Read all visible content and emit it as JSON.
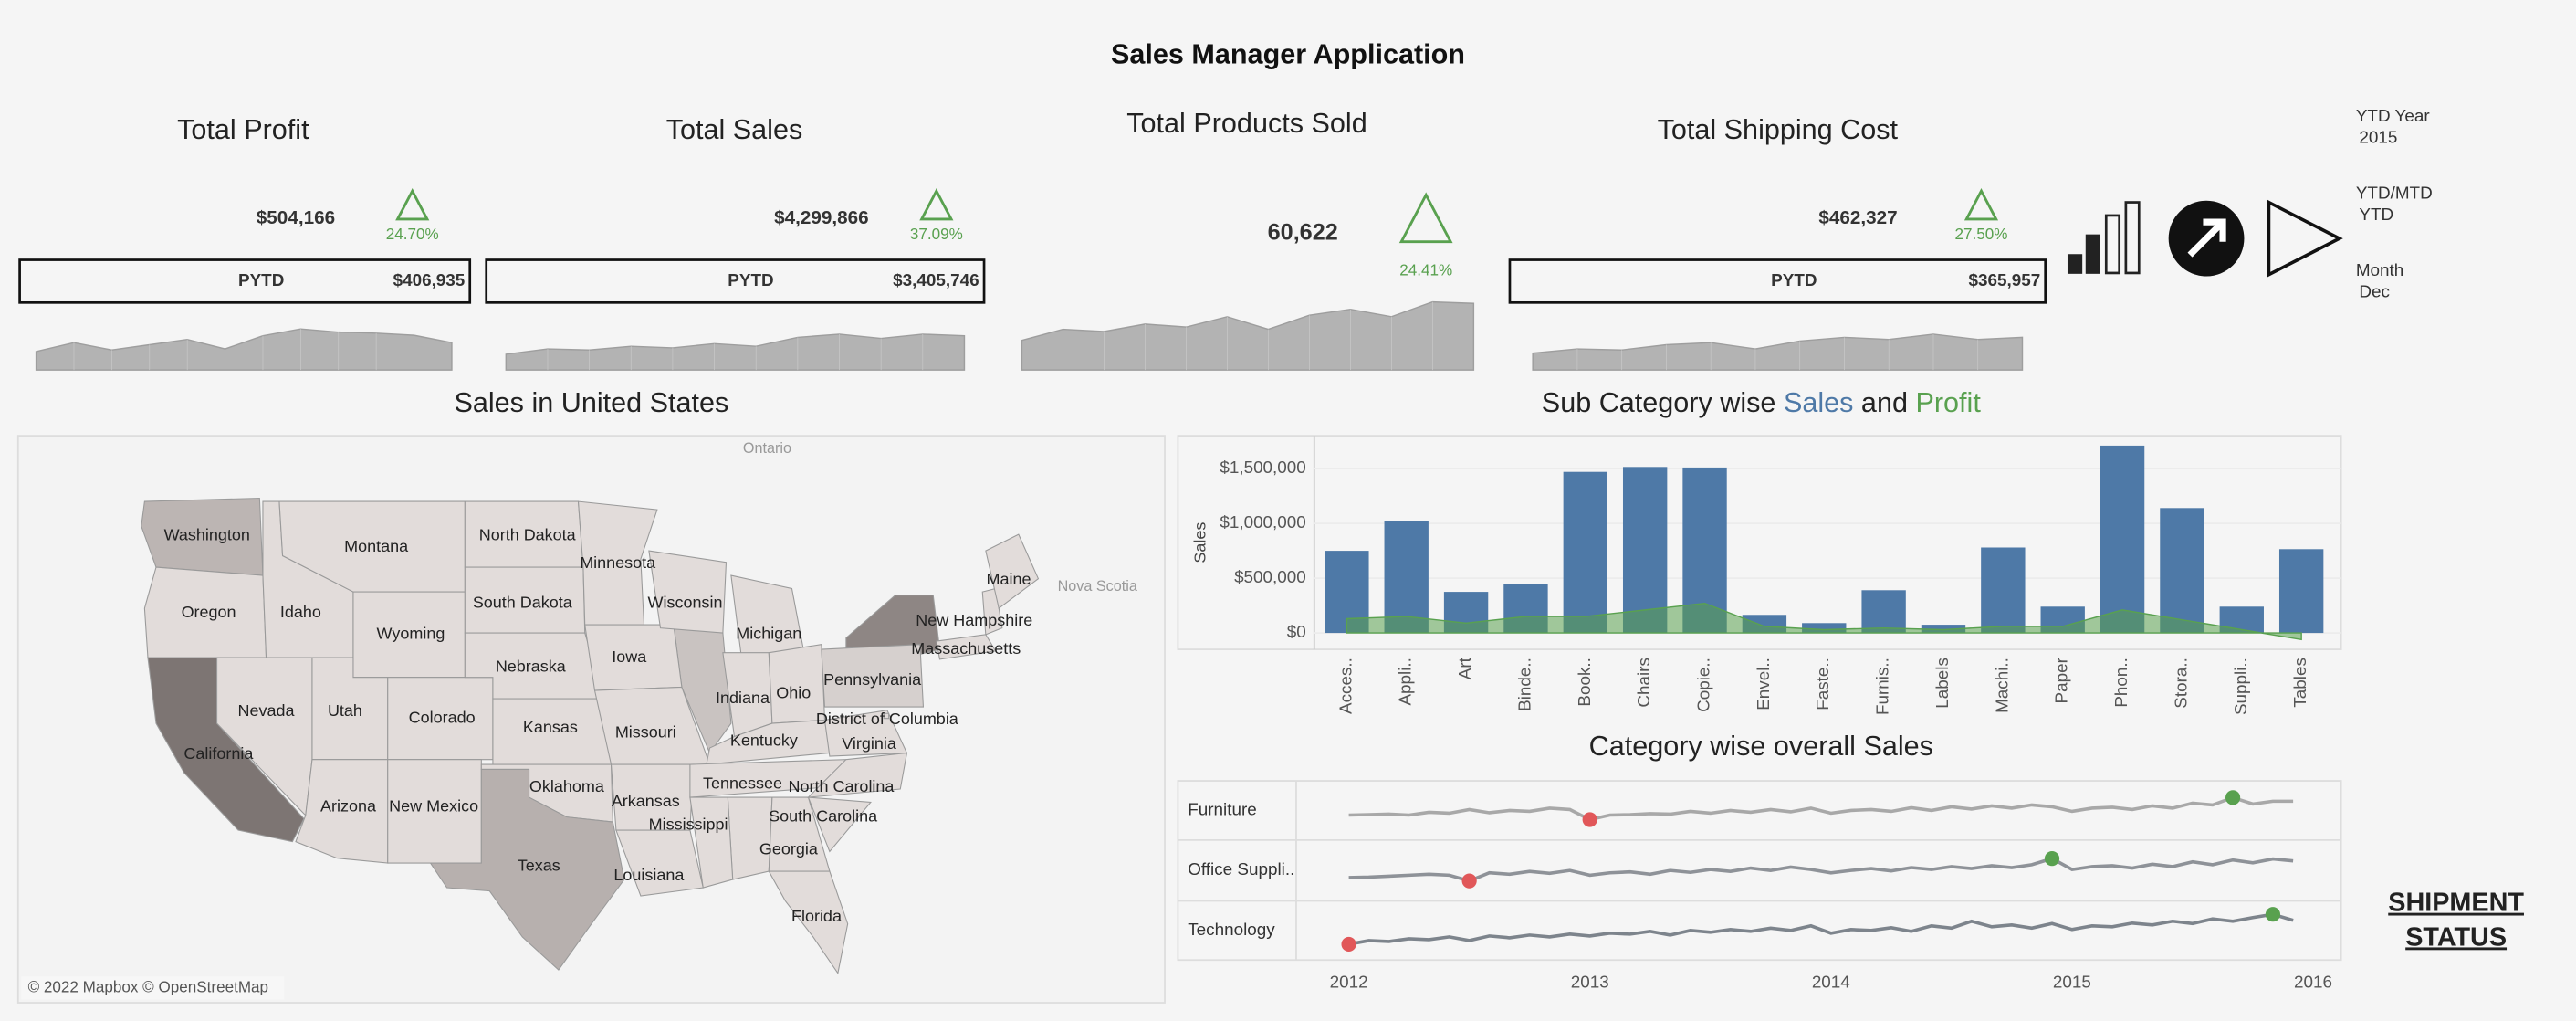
{
  "header": {
    "title": "Sales Manager Application"
  },
  "kpis": [
    {
      "title": "Total Profit",
      "value": "$504,166",
      "change": "24.70%",
      "pytd_label": "PYTD",
      "pytd": "$406,935"
    },
    {
      "title": "Total Sales",
      "value": "$4,299,866",
      "change": "37.09%",
      "pytd_label": "PYTD",
      "pytd": "$3,405,746"
    },
    {
      "title": "Total Products Sold",
      "value": "60,622",
      "change": "24.41%"
    },
    {
      "title": "Total Shipping Cost",
      "value": "$462,327",
      "change": "27.50%",
      "pytd_label": "PYTD",
      "pytd": "$365,957"
    }
  ],
  "filters": [
    {
      "label": "YTD Year",
      "value": "2015"
    },
    {
      "label": "YTD/MTD",
      "value": "YTD"
    },
    {
      "label": "Month",
      "value": "Dec"
    }
  ],
  "shipment_status": [
    "SHIPMENT",
    "STATUS"
  ],
  "map": {
    "title": "Sales in United States",
    "places": [
      "Ontario",
      "Nova Scotia"
    ],
    "attribution": "© 2022 Mapbox © OpenStreetMap",
    "states": [
      {
        "name": "Washington",
        "color": "#bcb5b3"
      },
      {
        "name": "Oregon",
        "color": "#e2dcda"
      },
      {
        "name": "California",
        "color": "#7d7573"
      },
      {
        "name": "Nevada",
        "color": "#e2dcda"
      },
      {
        "name": "Idaho",
        "color": "#e2dcda"
      },
      {
        "name": "Montana",
        "color": "#e2dcda"
      },
      {
        "name": "Wyoming",
        "color": "#e2dcda"
      },
      {
        "name": "Utah",
        "color": "#e2dcda"
      },
      {
        "name": "Arizona",
        "color": "#e2dcda"
      },
      {
        "name": "Colorado",
        "color": "#e2dcda"
      },
      {
        "name": "New Mexico",
        "color": "#e2dcda"
      },
      {
        "name": "North Dakota",
        "color": "#e2dcda"
      },
      {
        "name": "South Dakota",
        "color": "#e2dcda"
      },
      {
        "name": "Nebraska",
        "color": "#e2dcda"
      },
      {
        "name": "Kansas",
        "color": "#e2dcda"
      },
      {
        "name": "Oklahoma",
        "color": "#e2dcda"
      },
      {
        "name": "Texas",
        "color": "#b7b0ae"
      },
      {
        "name": "Minnesota",
        "color": "#e2dcda"
      },
      {
        "name": "Iowa",
        "color": "#e2dcda"
      },
      {
        "name": "Missouri",
        "color": "#e2dcda"
      },
      {
        "name": "Arkansas",
        "color": "#e2dcda"
      },
      {
        "name": "Louisiana",
        "color": "#e2dcda"
      },
      {
        "name": "Wisconsin",
        "color": "#e2dcda"
      },
      {
        "name": "Michigan",
        "color": "#e2dcda"
      },
      {
        "name": "Indiana",
        "color": "#e2dcda"
      },
      {
        "name": "Ohio",
        "color": "#e2dcda"
      },
      {
        "name": "Kentucky",
        "color": "#e2dcda"
      },
      {
        "name": "Tennessee",
        "color": "#e2dcda"
      },
      {
        "name": "Mississippi",
        "color": "#e2dcda"
      },
      {
        "name": "Georgia",
        "color": "#e2dcda"
      },
      {
        "name": "South Carolina",
        "color": "#e2dcda"
      },
      {
        "name": "North Carolina",
        "color": "#e2dcda"
      },
      {
        "name": "Virginia",
        "color": "#e2dcda"
      },
      {
        "name": "Pennsylvania",
        "color": "#d6d0ce"
      },
      {
        "name": "District of Columbia",
        "color": "#e2dcda"
      },
      {
        "name": "Florida",
        "color": "#e2dcda"
      },
      {
        "name": "New Hampshire",
        "color": "#e2dcda"
      },
      {
        "name": "Massachusetts",
        "color": "#e2dcda"
      },
      {
        "name": "Maine",
        "color": "#e2dcda"
      }
    ]
  },
  "chart_data": [
    {
      "type": "area",
      "values": [
        35,
        52,
        38,
        48,
        58,
        40,
        65,
        78,
        72,
        70,
        66,
        52
      ],
      "ylim": [
        0,
        100
      ],
      "color": "#b3b3b3"
    },
    {
      "type": "area",
      "values": [
        30,
        40,
        38,
        45,
        42,
        50,
        45,
        62,
        68,
        60,
        68,
        65
      ],
      "ylim": [
        0,
        100
      ],
      "color": "#b3b3b3"
    },
    {
      "type": "area",
      "values": [
        40,
        55,
        52,
        62,
        58,
        72,
        55,
        74,
        82,
        72,
        92,
        90
      ],
      "ylim": [
        0,
        100
      ],
      "color": "#b3b3b3"
    },
    {
      "type": "area",
      "values": [
        32,
        40,
        38,
        48,
        52,
        40,
        55,
        62,
        58,
        68,
        58,
        62
      ],
      "ylim": [
        0,
        100
      ],
      "color": "#b3b3b3"
    },
    {
      "type": "bar",
      "title_parts": [
        "Sub Category wise ",
        "Sales",
        " and ",
        "Profit"
      ],
      "y_label": "Sales",
      "categories": [
        "Acces..",
        "Appli..",
        "Art",
        "Binde..",
        "Book..",
        "Chairs",
        "Copie..",
        "Envel..",
        "Faste..",
        "Furnis..",
        "Labels",
        "Machi..",
        "Paper",
        "Phon..",
        "Stora..",
        "Suppli..",
        "Tables"
      ],
      "series": [
        {
          "name": "Sales",
          "color": "#4e79a7",
          "values": [
            750000,
            1020000,
            375000,
            450000,
            1470000,
            1515000,
            1510000,
            165000,
            90000,
            390000,
            75000,
            780000,
            240000,
            1710000,
            1140000,
            240000,
            765000
          ]
        },
        {
          "name": "Profit",
          "color": "#59a14f",
          "values": [
            130000,
            150000,
            90000,
            150000,
            150000,
            210000,
            270000,
            60000,
            30000,
            45000,
            30000,
            60000,
            60000,
            210000,
            120000,
            30000,
            -60000
          ]
        }
      ],
      "ylim": [
        -150000,
        1800000
      ],
      "yticks": [
        {
          "value": 0,
          "label": "$0"
        },
        {
          "value": 500000,
          "label": "$500,000"
        },
        {
          "value": 1000000,
          "label": "$1,000,000"
        },
        {
          "value": 1500000,
          "label": "$1,500,000"
        }
      ],
      "grid": true
    },
    {
      "type": "line",
      "title": "Category wise overall Sales",
      "x": [
        2012,
        2012.083,
        2012.167,
        2012.25,
        2012.333,
        2012.417,
        2012.5,
        2012.583,
        2012.667,
        2012.75,
        2012.833,
        2012.917,
        2013,
        2013.083,
        2013.167,
        2013.25,
        2013.333,
        2013.417,
        2013.5,
        2013.583,
        2013.667,
        2013.75,
        2013.833,
        2013.917,
        2014,
        2014.083,
        2014.167,
        2014.25,
        2014.333,
        2014.417,
        2014.5,
        2014.583,
        2014.667,
        2014.75,
        2014.833,
        2014.917,
        2015,
        2015.083,
        2015.167,
        2015.25,
        2015.333,
        2015.417,
        2015.5,
        2015.583,
        2015.667,
        2015.75,
        2015.833,
        2015.917
      ],
      "xlim": [
        2012,
        2016
      ],
      "xticks": [
        2012,
        2013,
        2014,
        2015,
        2016
      ],
      "ylim": [
        0,
        100
      ],
      "min_color": "#e15759",
      "max_color": "#59a14f",
      "series": [
        {
          "name": "Furniture",
          "color": "#a8a8a8",
          "values": [
            40,
            41,
            42,
            40,
            46,
            44,
            52,
            45,
            50,
            48,
            55,
            52,
            30,
            40,
            41,
            43,
            42,
            48,
            44,
            50,
            46,
            52,
            47,
            55,
            44,
            50,
            52,
            48,
            56,
            50,
            58,
            53,
            60,
            55,
            62,
            58,
            48,
            55,
            57,
            52,
            60,
            55,
            66,
            62,
            78,
            64,
            70,
            70
          ]
        },
        {
          "name": "Office Suppli..",
          "color": "#8e9298",
          "values": [
            35,
            36,
            38,
            40,
            42,
            40,
            28,
            45,
            42,
            48,
            44,
            50,
            40,
            45,
            47,
            42,
            50,
            46,
            52,
            48,
            55,
            50,
            57,
            52,
            45,
            50,
            54,
            49,
            56,
            52,
            58,
            54,
            60,
            56,
            62,
            75,
            52,
            58,
            60,
            55,
            63,
            58,
            68,
            62,
            72,
            66,
            74,
            70
          ]
        },
        {
          "name": "Technology",
          "color": "#7d848c",
          "values": [
            20,
            28,
            26,
            32,
            30,
            36,
            28,
            38,
            34,
            40,
            36,
            42,
            38,
            44,
            42,
            48,
            40,
            50,
            46,
            52,
            48,
            55,
            50,
            60,
            44,
            52,
            50,
            56,
            48,
            60,
            55,
            70,
            58,
            62,
            55,
            65,
            52,
            60,
            58,
            66,
            62,
            70,
            65,
            75,
            70,
            78,
            85,
            72
          ]
        }
      ]
    }
  ]
}
